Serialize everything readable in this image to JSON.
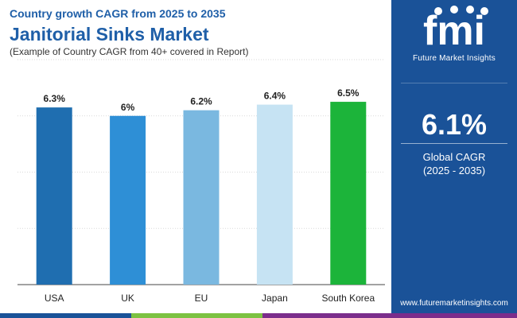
{
  "header": {
    "subtitle_top": "Country growth CAGR from 2025 to 2035",
    "title": "Janitorial Sinks Market",
    "note": "(Example of Country CAGR from 40+ covered in Report)"
  },
  "sidebar": {
    "logo_text": "fmi",
    "tagline": "Future Market Insights",
    "global_value": "6.1%",
    "global_label": "Global CAGR",
    "global_period": "(2025 - 2035)",
    "website": "www.futuremarketinsights.com",
    "background_color": "#1a5298"
  },
  "chart_data": {
    "type": "bar",
    "categories": [
      "USA",
      "UK",
      "EU",
      "Japan",
      "South Korea"
    ],
    "values": [
      6.3,
      6.0,
      6.2,
      6.4,
      6.5
    ],
    "value_labels": [
      "6.3%",
      "6%",
      "6.2%",
      "6.4%",
      "6.5%"
    ],
    "colors": [
      "#1f6eb0",
      "#2e8fd6",
      "#7ab8e0",
      "#c6e3f3",
      "#1cb43a"
    ],
    "ylim": [
      0,
      8
    ],
    "grid": true
  },
  "footer": {
    "colors": [
      "#1a5298",
      "#7cc242",
      "#7b2d8b"
    ]
  }
}
